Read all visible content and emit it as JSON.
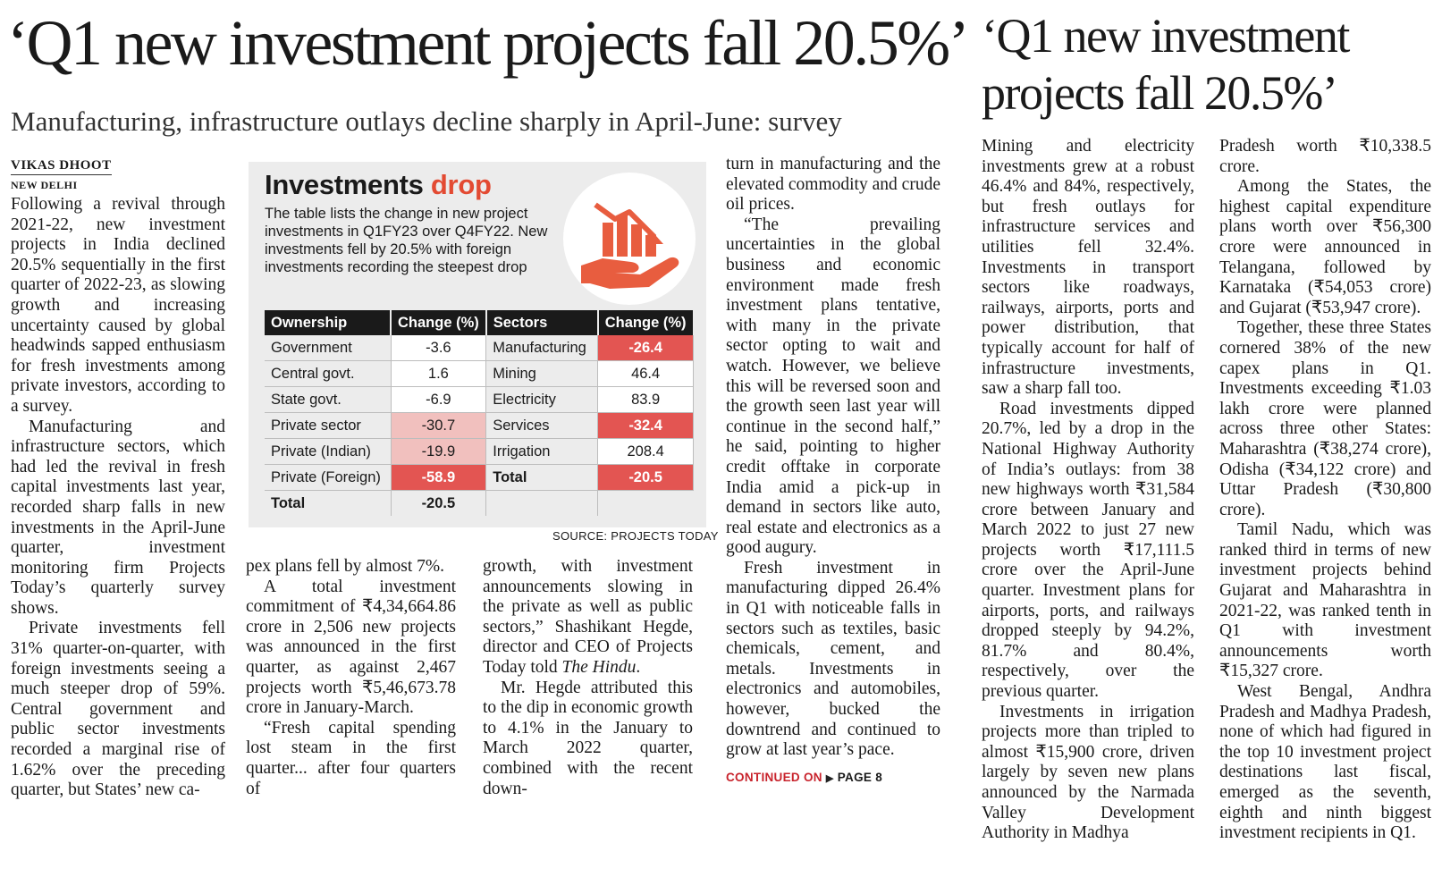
{
  "headline": "‘Q1 new investment projects fall 20.5%’",
  "subheadline": "Manufacturing, infrastructure outlays decline sharply in April-June: survey",
  "byline": "VIKAS DHOOT",
  "dateline": "NEW DELHI",
  "col1": {
    "p1": "Following a revival through 2021-22, new investment projects in India declined 20.5% sequentially in the first quarter of 2022-23, as slowing growth and increasing uncertainty caused by global headwinds sapped enthusiasm for fresh investments among private investors, according to a survey.",
    "p2": "Manufacturing and infrastructure sectors, which had led the revival in fresh capital investments last year, recorded sharp falls in new investments in the April-June quarter, investment monitoring firm Projects Today’s quarterly survey shows.",
    "p3": "Private investments fell 31% quarter-on-quarter, with foreign investments seeing a much steeper drop of 59%. Central government and public sector investments recorded a marginal rise of 1.62% over the preceding quarter, but States’ new ca-"
  },
  "col2": {
    "p1": "pex plans fell by almost 7%.",
    "p2": "A total investment commitment of ₹4,34,664.86 crore in 2,506 new projects was announced in the first quarter, as against 2,467 projects worth ₹5,46,673.78 crore in January-March.",
    "p3": "“Fresh capital spending lost steam in the first quarter... after four quarters of"
  },
  "col3": {
    "p1": "growth, with investment announcements slowing in the private as well as public sectors,” Shashikant Hegde, director and CEO of Projects Today told ",
    "p1_italic": "The Hindu",
    "p1_end": ".",
    "p2": "Mr. Hegde attributed this to the dip in economic growth to 4.1% in the January to March 2022 quarter, combined with the recent down-"
  },
  "col4": {
    "p1": "turn in manufacturing and the elevated commodity and crude oil prices.",
    "p2": "“The prevailing uncertainties in the global business and economic environment made fresh investment plans tentative, with many in the private sector opting to wait and watch. However, we believe this will be reversed soon and the growth seen last year will continue in the second half,” he said, pointing to higher credit offtake in corporate India amid a pick-up in demand in sectors like auto, real estate and electronics as a good augury.",
    "p3": "Fresh investment in manufacturing dipped 26.4% in Q1 with noticeable falls in sectors such as textiles, basic chemicals, cement, and metals. Investments in electronics and automobiles, however, bucked the downtrend and continued to grow at last year’s pace."
  },
  "continued": {
    "label": "CONTINUED ON",
    "arrow": "▶",
    "page": "PAGE 8"
  },
  "infographic": {
    "title_plain": "Investments ",
    "title_accent": "drop",
    "description": "The table lists the change in new project investments in Q1FY23 over Q4FY22. New investments fell by 20.5% with foreign investments recording the steepest drop",
    "icon": "hand-holding-declining-chart-icon",
    "source": "SOURCE: PROJECTS TODAY",
    "headers": [
      "Ownership",
      "Change (%)",
      "Sectors",
      "Change (%)"
    ],
    "rows": [
      {
        "ownership": "Government",
        "own_change": "-3.6",
        "sector": "Manufacturing",
        "sec_change": "-26.4"
      },
      {
        "ownership": "Central govt.",
        "own_change": "1.6",
        "sector": "Mining",
        "sec_change": "46.4"
      },
      {
        "ownership": "State govt.",
        "own_change": "-6.9",
        "sector": "Electricity",
        "sec_change": "83.9"
      },
      {
        "ownership": "Private sector",
        "own_change": "-30.7",
        "sector": "Services",
        "sec_change": "-32.4"
      },
      {
        "ownership": "Private (Indian)",
        "own_change": "-19.9",
        "sector": "Irrigation",
        "sec_change": "208.4"
      },
      {
        "ownership": "Private (Foreign)",
        "own_change": "-58.9",
        "sector": "Total",
        "sec_change": "-20.5"
      },
      {
        "ownership": "Total",
        "own_change": "-20.5",
        "sector": "",
        "sec_change": ""
      }
    ],
    "colors": {
      "accent": "#e34a32",
      "strong_decline": "#e35552",
      "moderate_decline": "#f1c0be",
      "header_bg": "#1a1a1a",
      "panel_bg": "#ececec"
    }
  },
  "sidebar": {
    "headline": "‘Q1 new investment projects fall 20.5%’",
    "col5": {
      "p1": "Mining and electricity investments grew at a robust 46.4% and 84%, respectively, but fresh outlays for infrastructure services and utilities fell 32.4%. Investments in transport sectors like roadways, railways, airports, ports and power distribution, that typically account for half of infrastructure investments, saw a sharp fall too.",
      "p2": "Road investments dipped 20.7%, led by a drop in the National Highway Authority of India’s outlays: from 38 new highways worth ₹31,584 crore between January and March 2022 to just 27 new projects worth ₹17,111.5 crore over the April-June quarter. Investment plans for airports, ports, and railways dropped steeply by 94.2%, 81.7% and 80.4%, respectively, over the previous quarter.",
      "p3": "Investments in irrigation projects more than tripled to almost ₹15,900 crore, driven largely by seven new plans announced by the Narmada Valley Development Authority in Madhya"
    },
    "col6": {
      "p1": "Pradesh worth ₹10,338.5 crore.",
      "p2": "Among the States, the highest capital expenditure plans worth over ₹56,300 crore were announced in Telangana, followed by Karnataka (₹54,053 crore) and Gujarat (₹53,947 crore).",
      "p3": "Together, these three States cornered 38% of the new capex plans in Q1. Investments exceeding ₹1.03 lakh crore were planned across three other States: Maharashtra (₹38,274 crore), Odisha (₹34,122 crore) and Uttar Pradesh (₹30,800 crore).",
      "p4": "Tamil Nadu, which was ranked third in terms of new investment projects behind Gujarat and Maharashtra in 2021-22, was ranked tenth in Q1 with investment announcements worth ₹15,327 crore.",
      "p5": "West Bengal, Andhra Pradesh and Madhya Pradesh, none of which had figured in the top 10 investment project destinations last fiscal, emerged as the seventh, eighth and ninth biggest investment recipients in Q1."
    }
  }
}
